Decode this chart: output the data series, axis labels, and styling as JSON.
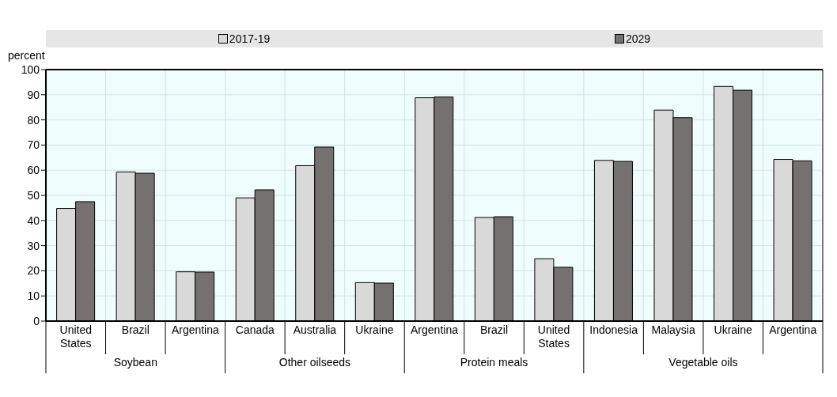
{
  "chart_data": {
    "type": "bar",
    "ylabel": "percent",
    "categories": [
      "United States",
      "Brazil",
      "Argentina",
      "Canada",
      "Australia",
      "Ukraine",
      "Argentina",
      "Brazil",
      "United States",
      "Indonesia",
      "Malaysia",
      "Ukraine",
      "Argentina"
    ],
    "series": [
      {
        "name": "2017-19",
        "color": "#d9d9d9",
        "values": [
          44.8,
          59.3,
          19.6,
          49,
          61.8,
          15.3,
          88.8,
          41.2,
          24.8,
          63.9,
          83.9,
          93.3,
          64.3
        ]
      },
      {
        "name": "2029",
        "color": "#767171",
        "values": [
          47.5,
          58.8,
          19.5,
          52.2,
          69.2,
          15.1,
          89.1,
          41.5,
          21.4,
          63.5,
          80.9,
          91.8,
          63.7
        ]
      }
    ],
    "annotations": [
      "Soybean",
      "Other oilseeds",
      "Protein meals",
      "Vegetable oils"
    ],
    "ylim": [
      0,
      100
    ],
    "yticks": [
      0,
      10,
      20,
      30,
      40,
      50,
      60,
      70,
      80,
      90,
      100
    ],
    "grid": true,
    "legend": "top"
  }
}
